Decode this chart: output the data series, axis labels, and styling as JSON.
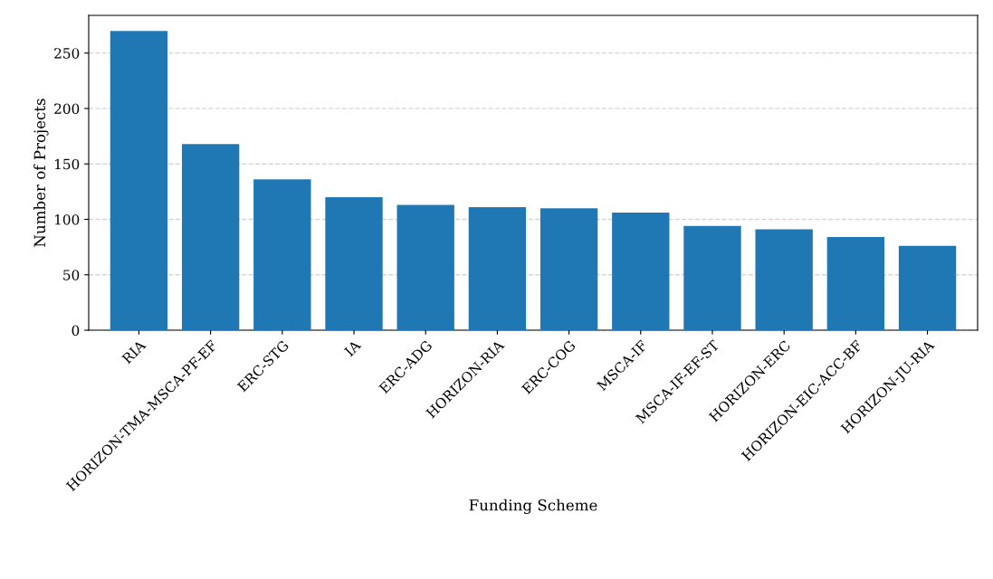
{
  "chart_data": {
    "type": "bar",
    "xlabel": "Funding Scheme",
    "ylabel": "Number of Projects",
    "categories": [
      "RIA",
      "HORIZON-TMA-MSCA-PF-EF",
      "ERC-STG",
      "IA",
      "ERC-ADG",
      "HORIZON-RIA",
      "ERC-COG",
      "MSCA-IF",
      "MSCA-IF-EF-ST",
      "HORIZON-ERC",
      "HORIZON-EIC-ACC-BF",
      "HORIZON-JU-RIA"
    ],
    "values": [
      270,
      168,
      136,
      120,
      113,
      111,
      110,
      106,
      94,
      91,
      84,
      76
    ],
    "color": "#1f77b4",
    "ylim": [
      0,
      284
    ],
    "yticks": [
      0,
      50,
      100,
      150,
      200,
      250
    ],
    "grid": "y",
    "line_style": "dashed"
  }
}
